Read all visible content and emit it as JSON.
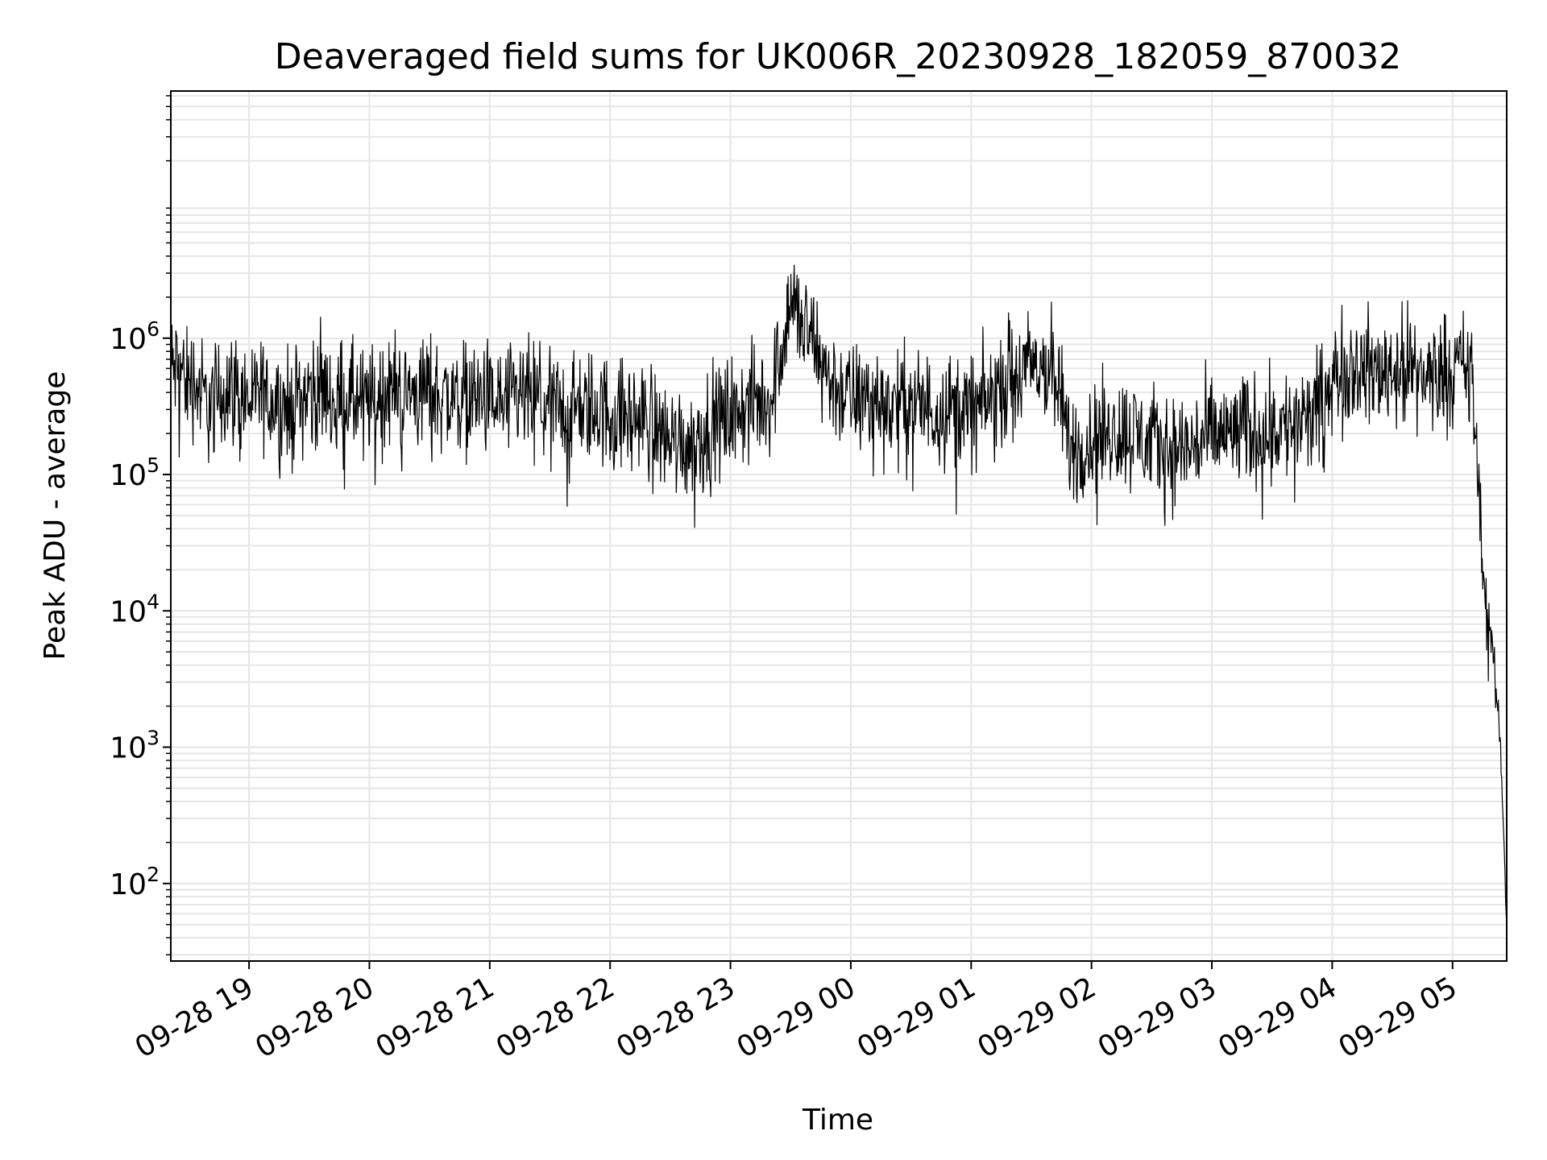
{
  "chart_data": {
    "type": "line",
    "title": "Deaveraged field sums for UK006R_20230928_182059_870032",
    "xlabel": "Time",
    "ylabel": "Peak ADU - average",
    "y_scale": "log",
    "ylim": [
      27,
      65000000
    ],
    "xlim": [
      "2023-09-28 18:21",
      "2023-09-29 05:27"
    ],
    "grid": true,
    "x_ticks": [
      {
        "t": "2023-09-28 19:00",
        "label": "09-28 19"
      },
      {
        "t": "2023-09-28 20:00",
        "label": "09-28 20"
      },
      {
        "t": "2023-09-28 21:00",
        "label": "09-28 21"
      },
      {
        "t": "2023-09-28 22:00",
        "label": "09-28 22"
      },
      {
        "t": "2023-09-28 23:00",
        "label": "09-28 23"
      },
      {
        "t": "2023-09-29 00:00",
        "label": "09-29 00"
      },
      {
        "t": "2023-09-29 01:00",
        "label": "09-29 01"
      },
      {
        "t": "2023-09-29 02:00",
        "label": "09-29 02"
      },
      {
        "t": "2023-09-29 03:00",
        "label": "09-29 03"
      },
      {
        "t": "2023-09-29 04:00",
        "label": "09-29 04"
      },
      {
        "t": "2023-09-29 05:00",
        "label": "09-29 05"
      }
    ],
    "y_ticks": [
      {
        "value": 100,
        "base": "10",
        "exp": "2"
      },
      {
        "value": 1000,
        "base": "10",
        "exp": "3"
      },
      {
        "value": 10000,
        "base": "10",
        "exp": "4"
      },
      {
        "value": 100000,
        "base": "10",
        "exp": "5"
      },
      {
        "value": 1000000,
        "base": "10",
        "exp": "6"
      }
    ],
    "series": [
      {
        "color": "#000000",
        "x": [
          "2023-09-28 18:21",
          "2023-09-28 18:30",
          "2023-09-28 18:40",
          "2023-09-28 18:50",
          "2023-09-28 19:00",
          "2023-09-28 19:10",
          "2023-09-28 19:20",
          "2023-09-28 19:30",
          "2023-09-28 19:40",
          "2023-09-28 19:50",
          "2023-09-28 20:00",
          "2023-09-28 20:10",
          "2023-09-28 20:20",
          "2023-09-28 20:30",
          "2023-09-28 20:40",
          "2023-09-28 20:50",
          "2023-09-28 21:00",
          "2023-09-28 21:10",
          "2023-09-28 21:20",
          "2023-09-28 21:30",
          "2023-09-28 21:40",
          "2023-09-28 21:50",
          "2023-09-28 22:00",
          "2023-09-28 22:10",
          "2023-09-28 22:20",
          "2023-09-28 22:30",
          "2023-09-28 22:40",
          "2023-09-28 22:50",
          "2023-09-28 23:00",
          "2023-09-28 23:10",
          "2023-09-28 23:20",
          "2023-09-28 23:30",
          "2023-09-28 23:40",
          "2023-09-28 23:50",
          "2023-09-29 00:00",
          "2023-09-29 00:10",
          "2023-09-29 00:20",
          "2023-09-29 00:30",
          "2023-09-29 00:40",
          "2023-09-29 00:50",
          "2023-09-29 01:00",
          "2023-09-29 01:10",
          "2023-09-29 01:20",
          "2023-09-29 01:30",
          "2023-09-29 01:40",
          "2023-09-29 01:50",
          "2023-09-29 02:00",
          "2023-09-29 02:10",
          "2023-09-29 02:20",
          "2023-09-29 02:30",
          "2023-09-29 02:40",
          "2023-09-29 02:50",
          "2023-09-29 03:00",
          "2023-09-29 03:10",
          "2023-09-29 03:20",
          "2023-09-29 03:30",
          "2023-09-29 03:40",
          "2023-09-29 03:50",
          "2023-09-29 04:00",
          "2023-09-29 04:10",
          "2023-09-29 04:20",
          "2023-09-29 04:30",
          "2023-09-29 04:40",
          "2023-09-29 04:50",
          "2023-09-29 05:00",
          "2023-09-29 05:05",
          "2023-09-29 05:10",
          "2023-09-29 05:15",
          "2023-09-29 05:20",
          "2023-09-29 05:24",
          "2023-09-29 05:27"
        ],
        "y": [
          600000,
          550000,
          320000,
          450000,
          350000,
          380000,
          300000,
          420000,
          400000,
          350000,
          330000,
          450000,
          380000,
          420000,
          360000,
          380000,
          350000,
          330000,
          370000,
          320000,
          300000,
          310000,
          280000,
          260000,
          250000,
          180000,
          170000,
          220000,
          280000,
          320000,
          350000,
          1900000,
          1000000,
          480000,
          350000,
          360000,
          320000,
          330000,
          300000,
          310000,
          290000,
          350000,
          560000,
          600000,
          650000,
          150000,
          180000,
          210000,
          200000,
          170000,
          150000,
          160000,
          190000,
          200000,
          210000,
          220000,
          230000,
          250000,
          500000,
          650000,
          550000,
          620000,
          600000,
          520000,
          650000,
          600000,
          500000,
          20000,
          5000,
          1000,
          50
        ]
      }
    ]
  }
}
